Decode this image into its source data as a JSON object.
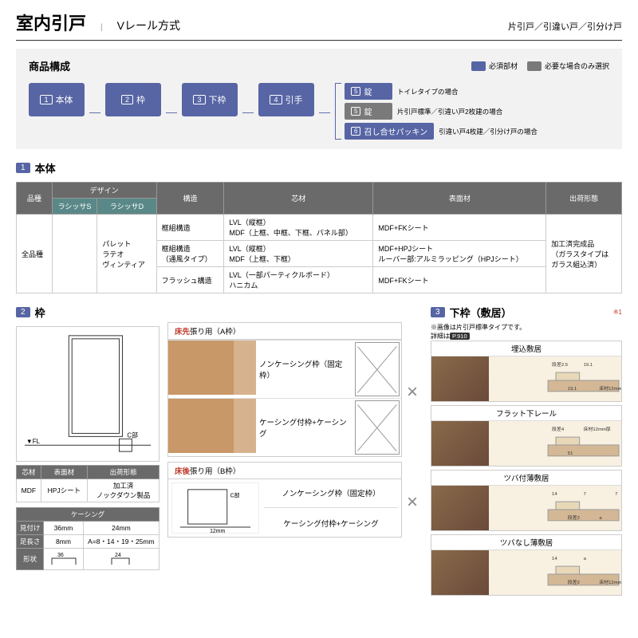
{
  "header": {
    "title": "室内引戸",
    "subtitle": "Vレール方式",
    "right": "片引戸／引違い戸／引分け戸"
  },
  "composition": {
    "title": "商品構成",
    "legend": {
      "required": "必須部材",
      "optional": "必要な場合のみ選択"
    },
    "steps": [
      "本体",
      "枠",
      "下枠",
      "引手"
    ],
    "branches": [
      {
        "num": "5",
        "label": "錠",
        "note": "トイレタイプの場合",
        "color": "blue"
      },
      {
        "num": "5",
        "label": "錠",
        "note": "片引戸標準／引違い戸2枚建の場合",
        "color": "gray"
      },
      {
        "num": "6",
        "label": "召し合せパッキン",
        "note": "引違い戸4枚建／引分け戸の場合",
        "color": "blue"
      }
    ]
  },
  "section1": {
    "num": "1",
    "title": "本体",
    "table": {
      "headers": {
        "breed": "品種",
        "design": "デザイン",
        "sub1": "ラシッサS",
        "sub2": "ラシッサD",
        "struct": "構造",
        "core": "芯材",
        "surface": "表面材",
        "ship": "出荷形態"
      },
      "breed_val": "全品種",
      "design_vals": "パレット\nラテオ\nヴィンティア",
      "rows": [
        {
          "struct": "框組構造",
          "core": "LVL（縦框）\nMDF（上框、中框、下框、パネル部）",
          "surface": "MDF+FKシート"
        },
        {
          "struct": "框組構造\n（通風タイプ）",
          "core": "LVL（縦框）\nMDF（上框、下框）",
          "surface": "MDF+HPJシート\nルーバー部:アルミラッピング（HPJシート）"
        },
        {
          "struct": "フラッシュ構造",
          "core": "LVL（一部パーティクルボード）\nハニカム",
          "surface": "MDF+FKシート"
        }
      ],
      "ship_val": "加工済完成品\n（ガラスタイプは\nガラス組込済）"
    }
  },
  "section2": {
    "num": "2",
    "title": "枠",
    "mini1": {
      "h": [
        "芯材",
        "表面材",
        "出荷形態"
      ],
      "r": [
        "MDF",
        "HPJシート",
        "加工済\nノックダウン製品"
      ]
    },
    "mini2": {
      "title": "ケーシング",
      "h": [
        "見付け",
        "36mm",
        "24mm"
      ],
      "r1": [
        "足長さ",
        "8mm",
        "A=8・14・19・25mm"
      ],
      "r2": "形状"
    },
    "frameA": {
      "tag_red": "床先",
      "tag": "張り用（A枠）",
      "row1": "ノンケーシング枠（固定枠）",
      "row2": "ケーシング付枠+ケーシング"
    },
    "frameB": {
      "tag_red": "床後",
      "tag": "張り用（B枠）",
      "row1": "ノンケーシング枠（固定枠）",
      "row2": "ケーシング付枠+ケーシング"
    },
    "labels": {
      "cpart": "C部",
      "h": "H",
      "fl": "▼FL",
      "twelve": "12mm"
    }
  },
  "section3": {
    "num": "3",
    "title": "下枠（敷居）",
    "note1": "※画像は片引戸標準タイプです。",
    "note2_pre": "詳細は",
    "note2_ref": "P.910",
    "ref_mark": "※1",
    "sills": [
      {
        "title": "埋込敷居",
        "dims": [
          "段差2.5",
          "19.1",
          "19.1",
          "床材12mm厚"
        ]
      },
      {
        "title": "フラット下レール",
        "dims": [
          "段差4",
          "51",
          "床材12mm厚"
        ]
      },
      {
        "title": "ツバ付薄敷居",
        "dims": [
          "14",
          "段差2",
          "7",
          "a",
          "7",
          "床材12mm厚"
        ]
      },
      {
        "title": "ツバなし薄敷居",
        "dims": [
          "14",
          "段差2",
          "a",
          "床材12mm厚"
        ]
      }
    ]
  }
}
